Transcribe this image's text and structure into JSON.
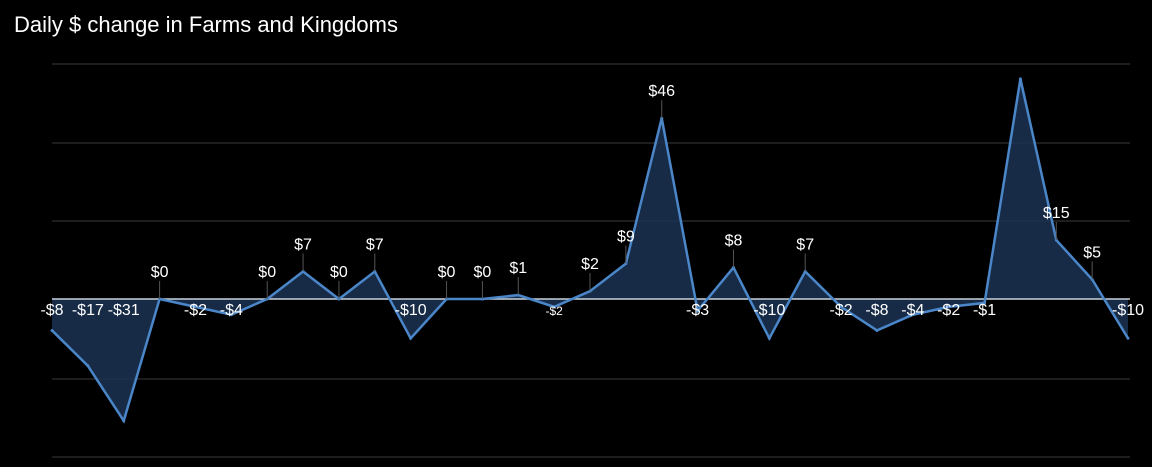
{
  "chart_data": {
    "type": "area",
    "title": "Daily $ change in Farms and Kingdoms",
    "xlabel": "",
    "ylabel": "",
    "ylim": [
      -52,
      76
    ],
    "grid": true,
    "legend": "none",
    "colors": {
      "line": "#4a86c8",
      "fill": "#1b3352",
      "zero_line": "#c8d2dc",
      "grid": "#3a3a3a",
      "background": "#000000",
      "text": "#ffffff"
    },
    "values": [
      -8,
      -17,
      -31,
      0,
      -2,
      -4,
      0,
      7,
      0,
      7,
      -10,
      0,
      0,
      1,
      -2,
      2,
      9,
      46,
      -3,
      8,
      -10,
      7,
      -2,
      -8,
      -4,
      -2,
      -1,
      56,
      15,
      5,
      -10
    ],
    "labels": [
      "-$8",
      "-$17",
      "-$31",
      "$0",
      "-$2",
      "-$4",
      "$0",
      "$7",
      "$0",
      "$7",
      "-$10",
      "$0",
      "$0",
      "$1",
      "-$2",
      "$2",
      "$9",
      "$46",
      "-$3",
      "$8",
      "-$10",
      "$7",
      "-$2",
      "-$8",
      "-$4",
      "-$2",
      "-$1",
      "",
      "$15",
      "$5",
      "-$10"
    ]
  }
}
